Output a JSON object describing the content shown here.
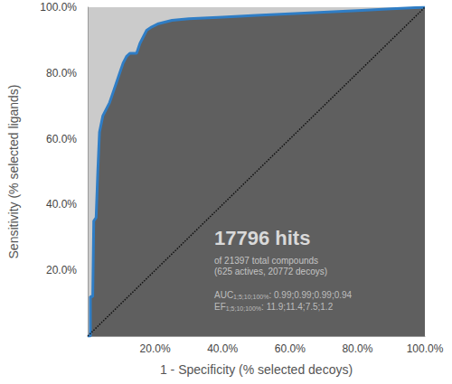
{
  "chart_data": {
    "type": "line",
    "xlabel": "1 - Specificity (% selected decoys)",
    "ylabel": "Sensitivity (% selected ligands)",
    "xlim": [
      0,
      100
    ],
    "ylim": [
      0,
      100
    ],
    "xticks": [
      {
        "value": 20,
        "label": "20.0%"
      },
      {
        "value": 40,
        "label": "40.0%"
      },
      {
        "value": 60,
        "label": "60.0%"
      },
      {
        "value": 80,
        "label": "80.0%"
      },
      {
        "value": 100,
        "label": "100.0%"
      }
    ],
    "yticks": [
      {
        "value": 20,
        "label": "20.0%"
      },
      {
        "value": 40,
        "label": "40.0%"
      },
      {
        "value": 60,
        "label": "60.0%"
      },
      {
        "value": 80,
        "label": "80.0%"
      },
      {
        "value": 100,
        "label": "100.0%"
      }
    ],
    "grid": false,
    "series": [
      {
        "x": [
          0,
          0.8,
          0.8,
          1.5,
          1.8,
          2.5,
          3,
          3.5,
          4.5,
          5.5,
          6.5,
          7.5,
          8.5,
          9.5,
          10.5,
          11.5,
          12.5,
          14.5,
          15.5,
          16.5,
          17.5,
          19,
          21,
          25,
          30,
          40,
          50,
          60,
          70,
          80,
          90,
          100
        ],
        "values": [
          0,
          0,
          12,
          12,
          35,
          36,
          50,
          62,
          67,
          69,
          71,
          74,
          77,
          80,
          83,
          85,
          86,
          86,
          89,
          91,
          93,
          94,
          95,
          96,
          96.5,
          97,
          97.5,
          98,
          98.5,
          99,
          99.5,
          100
        ],
        "color": "#2f7dc5",
        "line_style": "solid"
      },
      {
        "x": [
          0,
          100
        ],
        "values": [
          0,
          100
        ],
        "color": "#111111",
        "line_style": "dotted"
      }
    ],
    "annotations": [
      {
        "text": "17796 hits"
      },
      {
        "text": "of 21397 total compounds"
      },
      {
        "text": "(625 actives, 20772 decoys)"
      },
      {
        "text": "AUC",
        "subscript": "1;5;10;100%",
        "after": ": 0.99;0.99;0.99;0.94"
      },
      {
        "text": "EF",
        "subscript": "1;5;10;100%",
        "after": ": 11.9;11.4;7.5;1.2"
      }
    ]
  }
}
